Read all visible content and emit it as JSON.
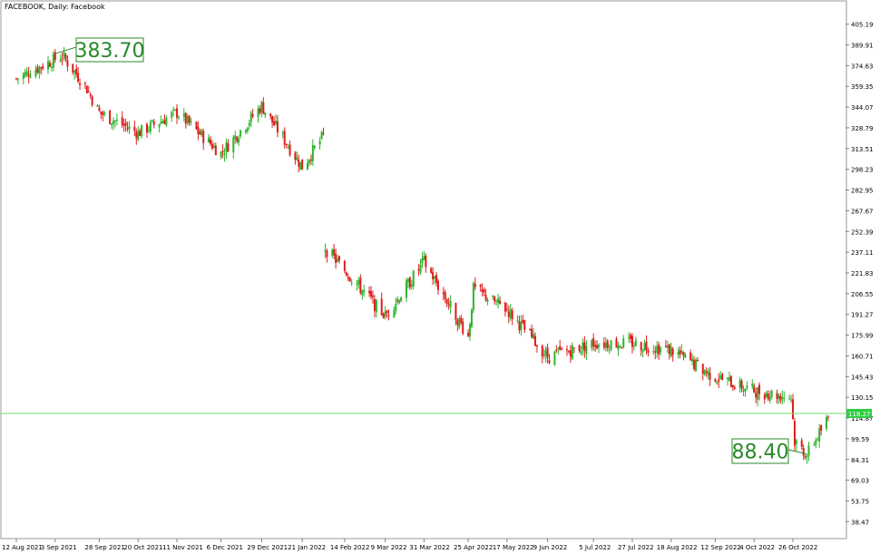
{
  "chart_title": "FACEBOOK, Daily: Facebook",
  "colors": {
    "up": "#2db52d",
    "down": "#e01c1c",
    "level_line": "#6fdc6f",
    "label_border": "#2a8a2a",
    "label_text": "#2a8a2a",
    "axis": "#808080",
    "price_tag_bg": "#2ecc40"
  },
  "chart_data": {
    "type": "candlestick",
    "title": "FACEBOOK, Daily: Facebook",
    "y_ticks": [
      "405.19",
      "389.91",
      "374.63",
      "359.35",
      "344.07",
      "328.79",
      "313.51",
      "298.23",
      "282.95",
      "267.67",
      "252.39",
      "237.11",
      "221.83",
      "206.55",
      "191.27",
      "175.99",
      "160.71",
      "145.43",
      "130.15",
      "114.87",
      "99.59",
      "84.31",
      "69.03",
      "53.75",
      "38.47"
    ],
    "x_ticks": [
      "12 Aug 2021",
      "3 Sep 2021",
      "28 Sep 2021",
      "20 Oct 2021",
      "11 Nov 2021",
      "6 Dec 2021",
      "29 Dec 2021",
      "21 Jan 2022",
      "14 Feb 2022",
      "9 Mar 2022",
      "31 Mar 2022",
      "25 Apr 2022",
      "17 May 2022",
      "9 Jun 2022",
      "5 Jul 2022",
      "27 Jul 2022",
      "18 Aug 2022",
      "12 Sep 2022",
      "4 Oct 2022",
      "26 Oct 2022"
    ],
    "ylim": [
      26,
      419
    ],
    "horizontal_level": {
      "value": 118.27,
      "label": "118.27"
    },
    "annotations": [
      {
        "label": "383.70",
        "value": 383.7,
        "date": "7 Sep 2021"
      },
      {
        "label": "88.40",
        "value": 88.4,
        "date": "3 Nov 2022"
      }
    ],
    "approx_close_path": [
      {
        "date": "12 Aug 2021",
        "close": 365
      },
      {
        "date": "7 Sep 2021",
        "close": 382
      },
      {
        "date": "20 Sep 2021",
        "close": 360
      },
      {
        "date": "28 Sep 2021",
        "close": 340
      },
      {
        "date": "20 Oct 2021",
        "close": 325
      },
      {
        "date": "11 Nov 2021",
        "close": 340
      },
      {
        "date": "6 Dec 2021",
        "close": 310
      },
      {
        "date": "29 Dec 2021",
        "close": 345
      },
      {
        "date": "21 Jan 2022",
        "close": 300
      },
      {
        "date": "2 Feb 2022",
        "close": 323
      },
      {
        "date": "3 Feb 2022",
        "close": 240
      },
      {
        "date": "9 Mar 2022",
        "close": 190
      },
      {
        "date": "31 Mar 2022",
        "close": 230
      },
      {
        "date": "25 Apr 2022",
        "close": 175
      },
      {
        "date": "28 Apr 2022",
        "close": 210
      },
      {
        "date": "17 May 2022",
        "close": 195
      },
      {
        "date": "9 Jun 2022",
        "close": 160
      },
      {
        "date": "5 Jul 2022",
        "close": 170
      },
      {
        "date": "27 Jul 2022",
        "close": 170
      },
      {
        "date": "18 Aug 2022",
        "close": 165
      },
      {
        "date": "12 Sep 2022",
        "close": 145
      },
      {
        "date": "4 Oct 2022",
        "close": 135
      },
      {
        "date": "25 Oct 2022",
        "close": 130
      },
      {
        "date": "27 Oct 2022",
        "close": 98
      },
      {
        "date": "3 Nov 2022",
        "close": 88
      },
      {
        "date": "15 Nov 2022",
        "close": 115
      }
    ]
  }
}
